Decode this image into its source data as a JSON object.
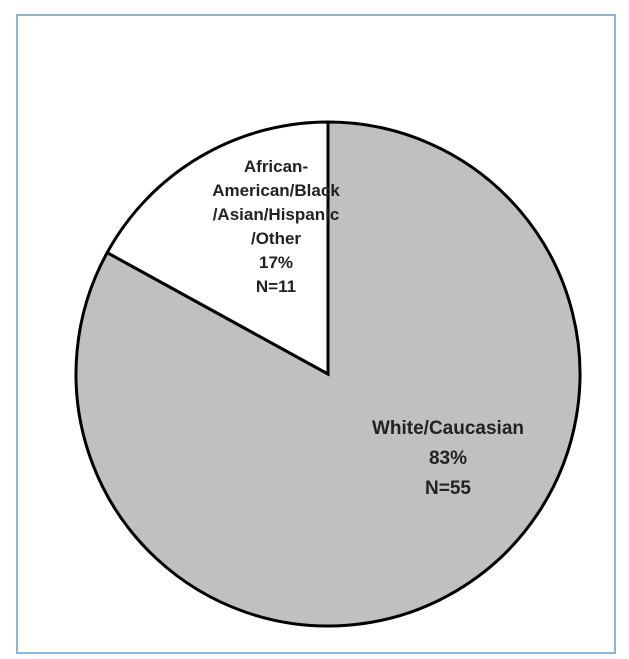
{
  "chart_data": {
    "type": "pie",
    "start_angle_deg": 0,
    "direction": "clockwise",
    "slices": [
      {
        "label_lines": [
          "White/Caucasian",
          "83%",
          "N=55"
        ],
        "percent": 83,
        "count": 55,
        "color": "#c0c0c0"
      },
      {
        "label_lines": [
          "African-",
          "American/Black",
          "/Asian/Hispanic",
          "/Other",
          "17%",
          "N=11"
        ],
        "percent": 17,
        "count": 11,
        "color": "#ffffff"
      }
    ],
    "outline_color": "#000000",
    "frame_border_color": "#8fb3d9"
  }
}
